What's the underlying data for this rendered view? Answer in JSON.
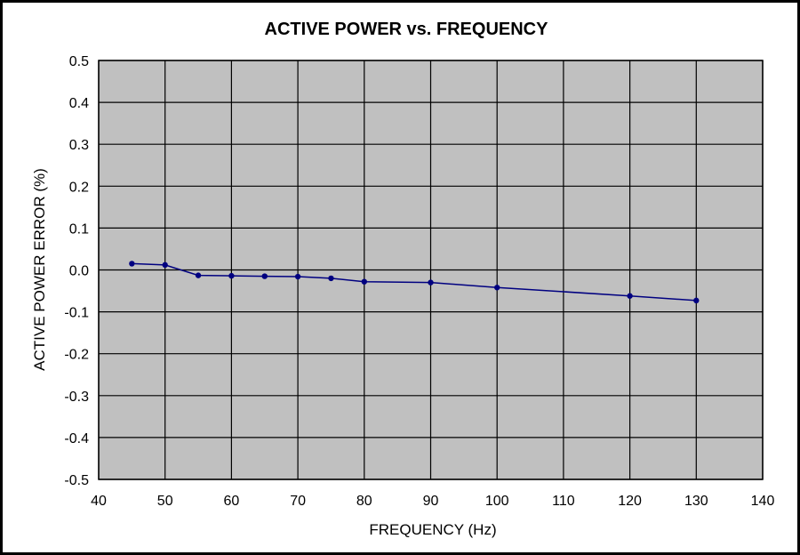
{
  "chart_data": {
    "type": "line",
    "title": "ACTIVE POWER vs. FREQUENCY",
    "xlabel": "FREQUENCY (Hz)",
    "ylabel": "ACTIVE POWER ERROR (%)",
    "xlim": [
      40,
      140
    ],
    "ylim": [
      -0.5,
      0.5
    ],
    "x_ticks": [
      "40",
      "50",
      "60",
      "70",
      "80",
      "90",
      "100",
      "110",
      "120",
      "130",
      "140"
    ],
    "y_ticks": [
      "0.5",
      "0.4",
      "0.3",
      "0.2",
      "0.1",
      "0.0",
      "-0.1",
      "-0.2",
      "-0.3",
      "-0.4",
      "-0.5"
    ],
    "grid": true,
    "series": [
      {
        "color": "#000080",
        "x": [
          45,
          50,
          55,
          60,
          65,
          70,
          75,
          80,
          90,
          100,
          120,
          130
        ],
        "y": [
          0.015,
          0.012,
          -0.013,
          -0.014,
          -0.015,
          -0.016,
          -0.02,
          -0.028,
          -0.03,
          -0.042,
          -0.062,
          -0.073
        ]
      }
    ]
  },
  "colors": {
    "plot_background": "#c0c0c0",
    "grid": "#000000",
    "series": "#000080"
  }
}
